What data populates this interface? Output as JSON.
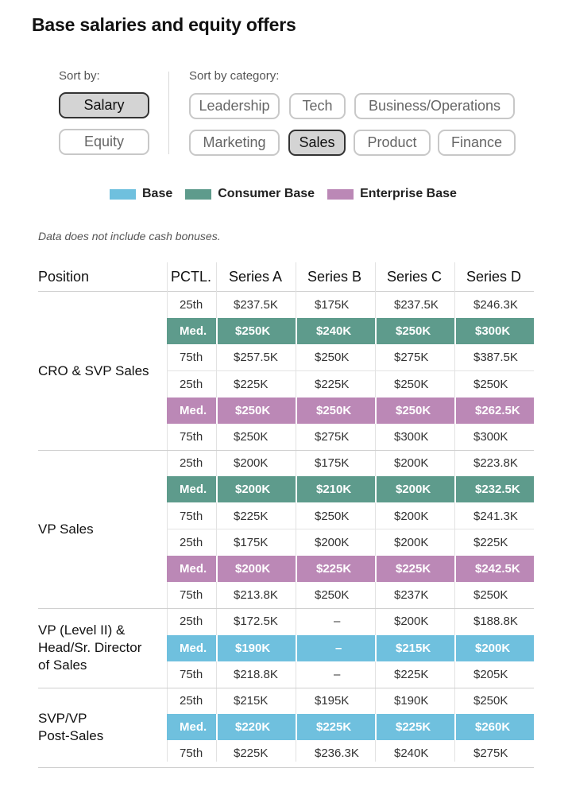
{
  "title": "Base salaries and equity offers",
  "sort": {
    "label": "Sort by:",
    "options": [
      "Salary",
      "Equity"
    ],
    "selected": "Salary"
  },
  "category": {
    "label": "Sort by category:",
    "options": [
      "Leadership",
      "Tech",
      "Business/Operations",
      "Marketing",
      "Sales",
      "Product",
      "Finance"
    ],
    "selected": "Sales"
  },
  "legend": [
    {
      "label": "Base",
      "color": "#6fc0de"
    },
    {
      "label": "Consumer Base",
      "color": "#5e9b8c"
    },
    {
      "label": "Enterprise Base",
      "color": "#bb88b6"
    }
  ],
  "note": "Data does not include cash bonuses.",
  "table": {
    "headers": [
      "Position",
      "PCTL.",
      "Series A",
      "Series B",
      "Series C",
      "Series D"
    ],
    "groups": [
      {
        "position": "CRO & SVP Sales",
        "rows": [
          {
            "pctl": "25th",
            "values": [
              "$237.5K",
              "$175K",
              "$237.5K",
              "$246.3K"
            ],
            "kind": "plain"
          },
          {
            "pctl": "Med.",
            "values": [
              "$250K",
              "$240K",
              "$250K",
              "$300K"
            ],
            "kind": "consumer"
          },
          {
            "pctl": "75th",
            "values": [
              "$257.5K",
              "$250K",
              "$275K",
              "$387.5K"
            ],
            "kind": "plain"
          },
          {
            "pctl": "25th",
            "values": [
              "$225K",
              "$225K",
              "$250K",
              "$250K"
            ],
            "kind": "plain"
          },
          {
            "pctl": "Med.",
            "values": [
              "$250K",
              "$250K",
              "$250K",
              "$262.5K"
            ],
            "kind": "enterprise"
          },
          {
            "pctl": "75th",
            "values": [
              "$250K",
              "$275K",
              "$300K",
              "$300K"
            ],
            "kind": "plain"
          }
        ]
      },
      {
        "position": "VP Sales",
        "rows": [
          {
            "pctl": "25th",
            "values": [
              "$200K",
              "$175K",
              "$200K",
              "$223.8K"
            ],
            "kind": "plain"
          },
          {
            "pctl": "Med.",
            "values": [
              "$200K",
              "$210K",
              "$200K",
              "$232.5K"
            ],
            "kind": "consumer"
          },
          {
            "pctl": "75th",
            "values": [
              "$225K",
              "$250K",
              "$200K",
              "$241.3K"
            ],
            "kind": "plain"
          },
          {
            "pctl": "25th",
            "values": [
              "$175K",
              "$200K",
              "$200K",
              "$225K"
            ],
            "kind": "plain"
          },
          {
            "pctl": "Med.",
            "values": [
              "$200K",
              "$225K",
              "$225K",
              "$242.5K"
            ],
            "kind": "enterprise"
          },
          {
            "pctl": "75th",
            "values": [
              "$213.8K",
              "$250K",
              "$237K",
              "$250K"
            ],
            "kind": "plain"
          }
        ]
      },
      {
        "position": "VP (Level II) & Head/Sr. Director of Sales",
        "position_lines": [
          "VP (Level II) &",
          "Head/Sr. Director",
          "of Sales"
        ],
        "rows": [
          {
            "pctl": "25th",
            "values": [
              "$172.5K",
              "–",
              "$200K",
              "$188.8K"
            ],
            "kind": "plain"
          },
          {
            "pctl": "Med.",
            "values": [
              "$190K",
              "–",
              "$215K",
              "$200K"
            ],
            "kind": "base"
          },
          {
            "pctl": "75th",
            "values": [
              "$218.8K",
              "–",
              "$225K",
              "$205K"
            ],
            "kind": "plain"
          }
        ]
      },
      {
        "position": "SVP/VP Post-Sales",
        "position_lines": [
          "SVP/VP",
          "Post-Sales"
        ],
        "rows": [
          {
            "pctl": "25th",
            "values": [
              "$215K",
              "$195K",
              "$190K",
              "$250K"
            ],
            "kind": "plain"
          },
          {
            "pctl": "Med.",
            "values": [
              "$220K",
              "$225K",
              "$225K",
              "$260K"
            ],
            "kind": "base"
          },
          {
            "pctl": "75th",
            "values": [
              "$225K",
              "$236.3K",
              "$240K",
              "$275K"
            ],
            "kind": "plain"
          }
        ]
      }
    ]
  }
}
